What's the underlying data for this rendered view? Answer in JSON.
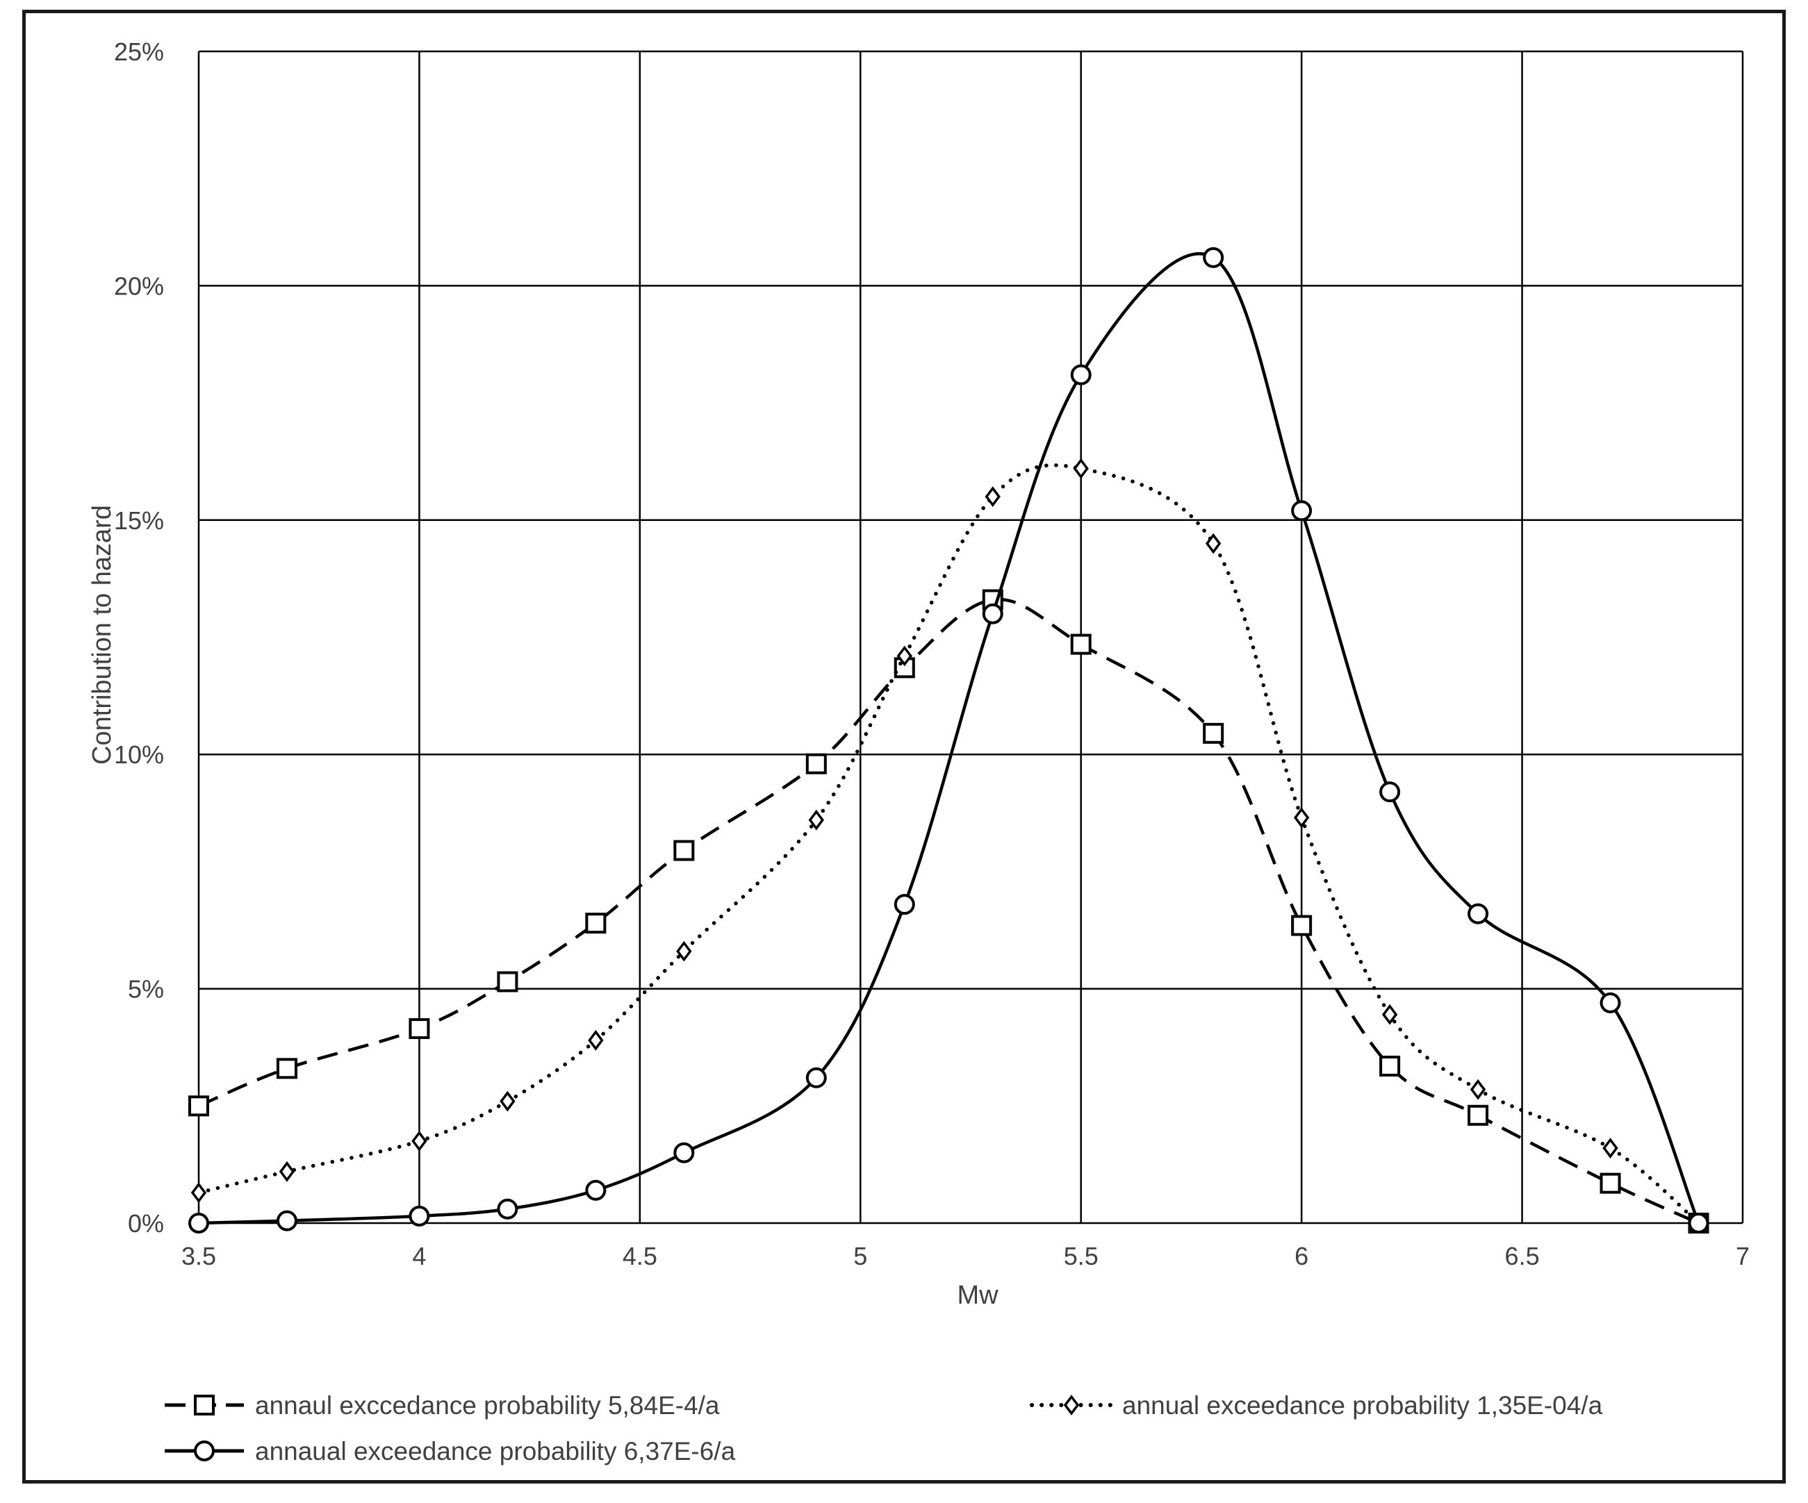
{
  "chart_data": {
    "type": "line",
    "title": "",
    "xlabel": "Mw",
    "ylabel": "Contribution to hazard",
    "xlim": [
      3.5,
      7
    ],
    "ylim": [
      0,
      25
    ],
    "x_ticks": [
      "3.5",
      "4",
      "4.5",
      "5",
      "5.5",
      "6",
      "6.5",
      "7"
    ],
    "y_ticks": [
      "0%",
      "5%",
      "10%",
      "15%",
      "20%",
      "25%"
    ],
    "grid": true,
    "legend_position": "bottom",
    "series": [
      {
        "name": "annaul exccedance probability 5,84E-4/a",
        "line_style": "dashed",
        "marker": "square",
        "color": "#000000",
        "x": [
          3.5,
          3.7,
          4.0,
          4.2,
          4.4,
          4.6,
          4.9,
          5.1,
          5.3,
          5.5,
          5.8,
          6.0,
          6.2,
          6.4,
          6.7,
          6.9
        ],
        "y": [
          2.5,
          3.3,
          4.15,
          5.15,
          6.4,
          7.95,
          9.8,
          11.85,
          13.3,
          12.35,
          10.45,
          6.35,
          3.35,
          2.3,
          0.85,
          0.0
        ]
      },
      {
        "name": "annual exceedance probability 1,35E-04/a",
        "line_style": "dotted",
        "marker": "diamond",
        "color": "#000000",
        "x": [
          3.5,
          3.7,
          4.0,
          4.2,
          4.4,
          4.6,
          4.9,
          5.1,
          5.3,
          5.5,
          5.8,
          6.0,
          6.2,
          6.4,
          6.7,
          6.9
        ],
        "y": [
          0.65,
          1.1,
          1.75,
          2.6,
          3.9,
          5.8,
          8.6,
          12.1,
          15.5,
          16.1,
          14.5,
          8.65,
          4.45,
          2.85,
          1.6,
          0.0
        ]
      },
      {
        "name": "annaual exceedance probability 6,37E-6/a",
        "line_style": "solid",
        "marker": "circle",
        "color": "#000000",
        "x": [
          3.5,
          3.7,
          4.0,
          4.2,
          4.4,
          4.6,
          4.9,
          5.1,
          5.3,
          5.5,
          5.8,
          6.0,
          6.2,
          6.4,
          6.7,
          6.9
        ],
        "y": [
          0.0,
          0.05,
          0.15,
          0.3,
          0.7,
          1.5,
          3.1,
          6.8,
          13.0,
          18.1,
          20.6,
          15.2,
          9.2,
          6.6,
          4.7,
          0.0
        ]
      }
    ]
  }
}
